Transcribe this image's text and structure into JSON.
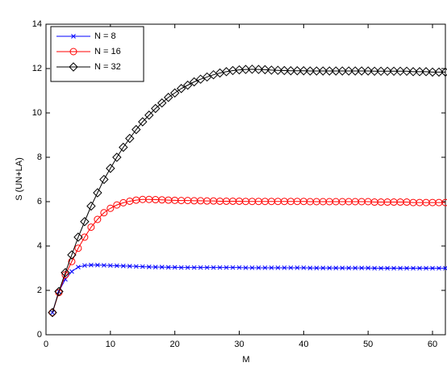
{
  "chart_data": {
    "type": "line",
    "xlabel": "M",
    "ylabel": "S (UN+LA)",
    "x": [
      1,
      2,
      3,
      4,
      5,
      6,
      7,
      8,
      9,
      10,
      11,
      12,
      13,
      14,
      15,
      16,
      17,
      18,
      19,
      20,
      21,
      22,
      23,
      24,
      25,
      26,
      27,
      28,
      29,
      30,
      31,
      32,
      33,
      34,
      35,
      36,
      37,
      38,
      39,
      40,
      41,
      42,
      43,
      44,
      45,
      46,
      47,
      48,
      49,
      50,
      51,
      52,
      53,
      54,
      55,
      56,
      57,
      58,
      59,
      60,
      61,
      62
    ],
    "series": [
      {
        "name": "N = 8",
        "color": "#0000ff",
        "marker": "x",
        "values": [
          1,
          1.95,
          2.5,
          2.85,
          3.05,
          3.12,
          3.14,
          3.14,
          3.13,
          3.12,
          3.11,
          3.1,
          3.09,
          3.08,
          3.07,
          3.06,
          3.05,
          3.05,
          3.04,
          3.04,
          3.03,
          3.03,
          3.03,
          3.03,
          3.03,
          3.03,
          3.03,
          3.03,
          3.03,
          3.03,
          3.02,
          3.02,
          3.02,
          3.02,
          3.02,
          3.02,
          3.02,
          3.02,
          3.02,
          3.02,
          3.01,
          3.01,
          3.01,
          3.01,
          3.01,
          3.01,
          3.01,
          3.01,
          3.01,
          3.01,
          3,
          3,
          3,
          3,
          3,
          3,
          3,
          3,
          3,
          3,
          3,
          3
        ]
      },
      {
        "name": "N = 16",
        "color": "#ff0000",
        "marker": "o",
        "values": [
          1,
          1.9,
          2.7,
          3.3,
          3.9,
          4.4,
          4.85,
          5.2,
          5.5,
          5.7,
          5.85,
          5.95,
          6.02,
          6.07,
          6.1,
          6.1,
          6.09,
          6.08,
          6.07,
          6.06,
          6.05,
          6.05,
          6.04,
          6.04,
          6.03,
          6.03,
          6.02,
          6.02,
          6.02,
          6.02,
          6.01,
          6.01,
          6.01,
          6.01,
          6.01,
          6.01,
          6.01,
          6.01,
          6.01,
          6.01,
          6,
          6,
          6,
          6,
          6,
          6,
          6,
          6,
          6,
          6,
          5.98,
          5.98,
          5.98,
          5.98,
          5.98,
          5.98,
          5.96,
          5.96,
          5.96,
          5.96,
          5.96,
          5.96
        ]
      },
      {
        "name": "N = 32",
        "color": "#000000",
        "marker": "d",
        "values": [
          1,
          1.95,
          2.8,
          3.6,
          4.4,
          5.1,
          5.8,
          6.4,
          7,
          7.5,
          8,
          8.45,
          8.85,
          9.25,
          9.6,
          9.9,
          10.2,
          10.45,
          10.7,
          10.9,
          11.1,
          11.25,
          11.4,
          11.52,
          11.62,
          11.72,
          11.8,
          11.86,
          11.91,
          11.94,
          11.96,
          11.97,
          11.96,
          11.95,
          11.93,
          11.92,
          11.91,
          11.9,
          11.9,
          11.9,
          11.89,
          11.89,
          11.89,
          11.89,
          11.89,
          11.89,
          11.89,
          11.89,
          11.89,
          11.89,
          11.88,
          11.88,
          11.88,
          11.88,
          11.88,
          11.88,
          11.86,
          11.86,
          11.86,
          11.84,
          11.84,
          11.84
        ]
      }
    ],
    "xlim": [
      0,
      62
    ],
    "ylim": [
      0,
      14
    ],
    "xticks": [
      0,
      10,
      20,
      30,
      40,
      50,
      60
    ],
    "yticks": [
      0,
      2,
      4,
      6,
      8,
      10,
      12,
      14
    ]
  }
}
